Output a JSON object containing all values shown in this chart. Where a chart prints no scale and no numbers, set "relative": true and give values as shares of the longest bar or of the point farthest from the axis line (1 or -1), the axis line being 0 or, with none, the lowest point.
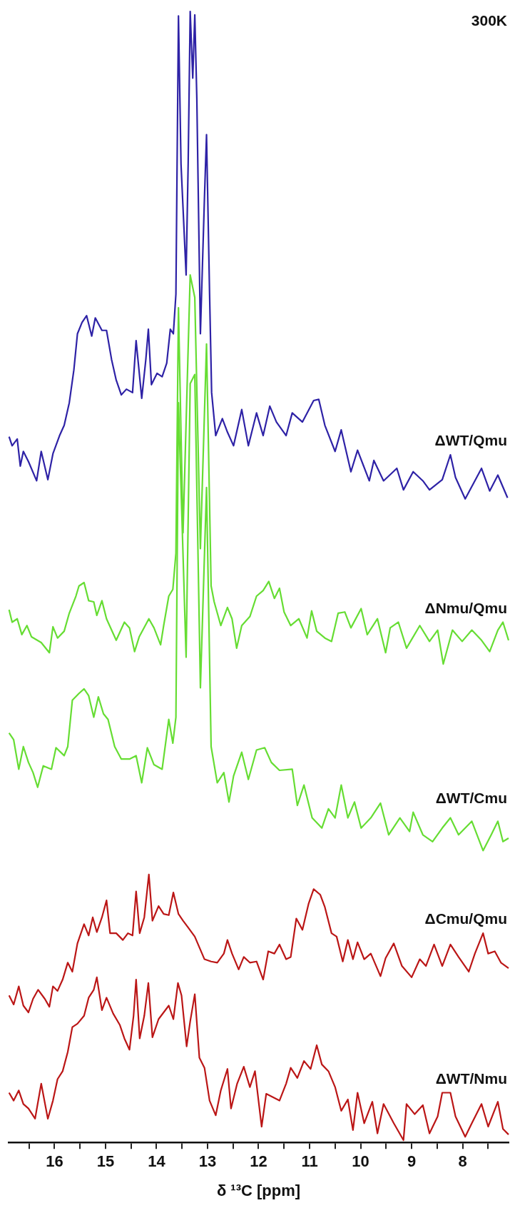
{
  "chart_data": {
    "type": "line",
    "relative": true,
    "xlabel": "δ ¹³C [ppm]",
    "xlim": [
      16.9,
      7.1
    ],
    "xticks": [
      {
        "value": 16.5,
        "label": null
      },
      16,
      {
        "value": 15.5,
        "label": null
      },
      15,
      {
        "value": 14.5,
        "label": null
      },
      14,
      {
        "value": 13.5,
        "label": null
      },
      13,
      {
        "value": 12.5,
        "label": null
      },
      12,
      {
        "value": 11.5,
        "label": null
      },
      11,
      {
        "value": 10.5,
        "label": null
      },
      10,
      {
        "value": 9.5,
        "label": null
      },
      9,
      {
        "value": 8.5,
        "label": null
      },
      8,
      {
        "value": 7.5,
        "label": null
      }
    ],
    "grid": false,
    "legend": false,
    "marker": "none",
    "line_style": "solid",
    "annotations": [
      "300K"
    ],
    "series": [
      {
        "name": "ΔWT/Qmu",
        "color": "#2e22a6",
        "x": [
          16.89,
          16.83,
          16.73,
          16.67,
          16.61,
          16.51,
          16.35,
          16.26,
          16.13,
          16.03,
          15.9,
          15.81,
          15.71,
          15.62,
          15.55,
          15.46,
          15.37,
          15.27,
          15.2,
          15.07,
          14.98,
          14.88,
          14.79,
          14.69,
          14.59,
          14.47,
          14.4,
          14.29,
          14.21,
          14.16,
          14.1,
          13.99,
          13.89,
          13.8,
          13.73,
          13.67,
          13.62,
          13.57,
          13.52,
          13.42,
          13.38,
          13.34,
          13.29,
          13.25,
          13.21,
          13.14,
          13.06,
          13.02,
          12.96,
          12.92,
          12.84,
          12.71,
          12.61,
          12.49,
          12.33,
          12.2,
          12.04,
          11.91,
          11.78,
          11.65,
          11.46,
          11.34,
          11.14,
          10.92,
          10.82,
          10.7,
          10.5,
          10.38,
          10.19,
          10.06,
          9.83,
          9.74,
          9.55,
          9.29,
          9.16,
          8.97,
          8.78,
          8.65,
          8.4,
          8.24,
          8.14,
          7.95,
          7.63,
          7.47,
          7.31,
          7.12
        ],
        "values": [
          0.624,
          0.616,
          0.622,
          0.598,
          0.611,
          0.602,
          0.585,
          0.611,
          0.586,
          0.609,
          0.625,
          0.634,
          0.654,
          0.683,
          0.715,
          0.725,
          0.731,
          0.713,
          0.729,
          0.718,
          0.718,
          0.692,
          0.674,
          0.661,
          0.666,
          0.663,
          0.709,
          0.658,
          0.692,
          0.719,
          0.67,
          0.68,
          0.677,
          0.689,
          0.719,
          0.715,
          0.75,
          0.996,
          0.865,
          0.767,
          0.865,
          1.0,
          0.941,
          0.997,
          0.923,
          0.715,
          0.836,
          0.891,
          0.75,
          0.663,
          0.625,
          0.64,
          0.628,
          0.616,
          0.648,
          0.616,
          0.645,
          0.625,
          0.651,
          0.637,
          0.625,
          0.645,
          0.637,
          0.656,
          0.657,
          0.634,
          0.611,
          0.63,
          0.593,
          0.612,
          0.585,
          0.603,
          0.585,
          0.596,
          0.577,
          0.593,
          0.585,
          0.577,
          0.586,
          0.608,
          0.588,
          0.569,
          0.596,
          0.576,
          0.59,
          0.57
        ]
      },
      {
        "name": "ΔNmu/Qmu",
        "color": "#66dd33",
        "x": [
          16.89,
          16.83,
          16.73,
          16.64,
          16.54,
          16.45,
          16.26,
          16.1,
          16.03,
          15.94,
          15.81,
          15.71,
          15.58,
          15.52,
          15.42,
          15.33,
          15.23,
          15.17,
          15.07,
          14.98,
          14.79,
          14.63,
          14.53,
          14.43,
          14.34,
          14.15,
          14.05,
          13.92,
          13.86,
          13.76,
          13.68,
          13.62,
          13.57,
          13.48,
          13.34,
          13.25,
          13.14,
          13.02,
          12.93,
          12.87,
          12.74,
          12.61,
          12.52,
          12.43,
          12.33,
          12.17,
          12.04,
          11.91,
          11.8,
          11.69,
          11.59,
          11.5,
          11.37,
          11.21,
          11.05,
          10.96,
          10.86,
          10.7,
          10.57,
          10.44,
          10.31,
          10.19,
          9.99,
          9.87,
          9.67,
          9.51,
          9.42,
          9.26,
          9.1,
          8.84,
          8.65,
          8.49,
          8.38,
          8.2,
          8.01,
          7.82,
          7.63,
          7.47,
          7.31,
          7.21,
          7.1
        ],
        "values": [
          0.471,
          0.46,
          0.463,
          0.449,
          0.457,
          0.447,
          0.442,
          0.433,
          0.456,
          0.446,
          0.452,
          0.468,
          0.483,
          0.492,
          0.495,
          0.479,
          0.478,
          0.466,
          0.479,
          0.463,
          0.444,
          0.46,
          0.455,
          0.434,
          0.447,
          0.463,
          0.455,
          0.44,
          0.457,
          0.483,
          0.489,
          0.521,
          0.738,
          0.539,
          0.767,
          0.747,
          0.525,
          0.706,
          0.492,
          0.478,
          0.457,
          0.473,
          0.463,
          0.437,
          0.457,
          0.465,
          0.483,
          0.488,
          0.496,
          0.481,
          0.49,
          0.469,
          0.457,
          0.463,
          0.446,
          0.47,
          0.452,
          0.446,
          0.443,
          0.468,
          0.469,
          0.455,
          0.472,
          0.449,
          0.463,
          0.433,
          0.455,
          0.46,
          0.437,
          0.457,
          0.443,
          0.453,
          0.423,
          0.453,
          0.443,
          0.453,
          0.444,
          0.434,
          0.453,
          0.46,
          0.444
        ]
      },
      {
        "name": "ΔWT/Cmu",
        "color": "#66dd33",
        "x": [
          16.89,
          16.8,
          16.7,
          16.61,
          16.51,
          16.42,
          16.33,
          16.22,
          16.06,
          15.97,
          15.81,
          15.74,
          15.65,
          15.52,
          15.42,
          15.33,
          15.23,
          15.14,
          15.04,
          14.95,
          14.82,
          14.69,
          14.53,
          14.4,
          14.29,
          14.18,
          14.05,
          13.89,
          13.76,
          13.68,
          13.62,
          13.57,
          13.42,
          13.34,
          13.25,
          13.14,
          13.02,
          12.93,
          12.81,
          12.68,
          12.58,
          12.49,
          12.33,
          12.2,
          12.04,
          11.88,
          11.75,
          11.59,
          11.34,
          11.24,
          11.11,
          10.95,
          10.76,
          10.63,
          10.5,
          10.38,
          10.25,
          10.12,
          9.99,
          9.8,
          9.61,
          9.45,
          9.23,
          9.04,
          8.97,
          8.78,
          8.59,
          8.4,
          8.24,
          8.08,
          7.82,
          7.6,
          7.44,
          7.31,
          7.21,
          7.1
        ],
        "values": [
          0.362,
          0.356,
          0.33,
          0.35,
          0.336,
          0.327,
          0.314,
          0.333,
          0.33,
          0.349,
          0.342,
          0.35,
          0.391,
          0.397,
          0.401,
          0.395,
          0.376,
          0.394,
          0.379,
          0.374,
          0.35,
          0.339,
          0.339,
          0.342,
          0.318,
          0.349,
          0.334,
          0.33,
          0.374,
          0.353,
          0.376,
          0.654,
          0.429,
          0.671,
          0.679,
          0.402,
          0.579,
          0.35,
          0.318,
          0.327,
          0.301,
          0.324,
          0.345,
          0.321,
          0.347,
          0.349,
          0.336,
          0.329,
          0.33,
          0.298,
          0.316,
          0.287,
          0.278,
          0.295,
          0.287,
          0.316,
          0.287,
          0.301,
          0.278,
          0.287,
          0.3,
          0.272,
          0.287,
          0.275,
          0.292,
          0.272,
          0.266,
          0.278,
          0.287,
          0.272,
          0.284,
          0.258,
          0.272,
          0.284,
          0.266,
          0.269
        ]
      },
      {
        "name": "ΔCmu/Qmu",
        "color": "#bb1616",
        "x": [
          16.89,
          16.8,
          16.7,
          16.61,
          16.51,
          16.42,
          16.32,
          16.19,
          16.1,
          16.03,
          15.94,
          15.84,
          15.74,
          15.65,
          15.55,
          15.42,
          15.33,
          15.25,
          15.17,
          15.07,
          14.98,
          14.91,
          14.79,
          14.66,
          14.56,
          14.47,
          14.4,
          14.33,
          14.24,
          14.15,
          14.08,
          13.96,
          13.86,
          13.76,
          13.67,
          13.57,
          13.48,
          13.38,
          13.25,
          13.06,
          12.93,
          12.81,
          12.68,
          12.61,
          12.52,
          12.39,
          12.29,
          12.17,
          12.04,
          11.91,
          11.81,
          11.69,
          11.59,
          11.46,
          11.37,
          11.26,
          11.14,
          11.02,
          10.92,
          10.79,
          10.7,
          10.57,
          10.47,
          10.35,
          10.25,
          10.15,
          10.06,
          9.93,
          9.8,
          9.61,
          9.51,
          9.35,
          9.19,
          9.0,
          8.84,
          8.72,
          8.56,
          8.4,
          8.24,
          8.08,
          7.88,
          7.76,
          7.6,
          7.5,
          7.37,
          7.25,
          7.1
        ],
        "values": [
          0.13,
          0.122,
          0.138,
          0.121,
          0.115,
          0.127,
          0.135,
          0.127,
          0.12,
          0.138,
          0.134,
          0.144,
          0.159,
          0.151,
          0.176,
          0.193,
          0.183,
          0.199,
          0.186,
          0.199,
          0.214,
          0.185,
          0.185,
          0.179,
          0.185,
          0.183,
          0.222,
          0.185,
          0.199,
          0.237,
          0.196,
          0.209,
          0.202,
          0.201,
          0.221,
          0.202,
          0.196,
          0.19,
          0.182,
          0.162,
          0.16,
          0.159,
          0.167,
          0.179,
          0.167,
          0.153,
          0.164,
          0.159,
          0.16,
          0.144,
          0.169,
          0.167,
          0.175,
          0.162,
          0.164,
          0.198,
          0.188,
          0.211,
          0.224,
          0.219,
          0.208,
          0.185,
          0.182,
          0.16,
          0.179,
          0.162,
          0.177,
          0.162,
          0.167,
          0.147,
          0.163,
          0.176,
          0.156,
          0.146,
          0.162,
          0.156,
          0.175,
          0.156,
          0.175,
          0.164,
          0.151,
          0.167,
          0.185,
          0.167,
          0.169,
          0.159,
          0.154
        ]
      },
      {
        "name": "ΔWT/Nmu",
        "color": "#bb1616",
        "x": [
          16.89,
          16.8,
          16.7,
          16.61,
          16.51,
          16.38,
          16.26,
          16.13,
          16.03,
          15.94,
          15.84,
          15.74,
          15.65,
          15.55,
          15.42,
          15.33,
          15.23,
          15.17,
          15.07,
          14.98,
          14.85,
          14.72,
          14.63,
          14.53,
          14.45,
          14.4,
          14.33,
          14.24,
          14.16,
          14.08,
          13.96,
          13.86,
          13.76,
          13.67,
          13.58,
          13.51,
          13.41,
          13.34,
          13.25,
          13.16,
          13.06,
          12.96,
          12.84,
          12.74,
          12.61,
          12.54,
          12.42,
          12.29,
          12.17,
          12.07,
          11.94,
          11.85,
          11.72,
          11.59,
          11.46,
          11.37,
          11.24,
          11.11,
          10.98,
          10.86,
          10.76,
          10.63,
          10.5,
          10.38,
          10.25,
          10.15,
          10.06,
          9.93,
          9.77,
          9.67,
          9.55,
          9.35,
          9.16,
          9.1,
          8.94,
          8.78,
          8.65,
          8.49,
          8.4,
          8.24,
          8.14,
          7.95,
          7.82,
          7.63,
          7.5,
          7.31,
          7.21,
          7.1
        ],
        "values": [
          0.044,
          0.037,
          0.046,
          0.034,
          0.03,
          0.021,
          0.052,
          0.021,
          0.037,
          0.056,
          0.063,
          0.08,
          0.102,
          0.105,
          0.112,
          0.128,
          0.135,
          0.146,
          0.117,
          0.128,
          0.114,
          0.104,
          0.092,
          0.082,
          0.112,
          0.144,
          0.092,
          0.112,
          0.141,
          0.093,
          0.109,
          0.115,
          0.121,
          0.109,
          0.141,
          0.13,
          0.085,
          0.107,
          0.131,
          0.075,
          0.066,
          0.037,
          0.024,
          0.046,
          0.065,
          0.03,
          0.052,
          0.067,
          0.049,
          0.063,
          0.014,
          0.043,
          0.04,
          0.037,
          0.052,
          0.066,
          0.057,
          0.072,
          0.065,
          0.086,
          0.069,
          0.063,
          0.049,
          0.028,
          0.038,
          0.011,
          0.044,
          0.017,
          0.036,
          0.008,
          0.034,
          0.017,
          0.002,
          0.034,
          0.025,
          0.033,
          0.008,
          0.023,
          0.044,
          0.044,
          0.023,
          0.005,
          0.017,
          0.034,
          0.014,
          0.036,
          0.012,
          0.007
        ]
      }
    ]
  }
}
